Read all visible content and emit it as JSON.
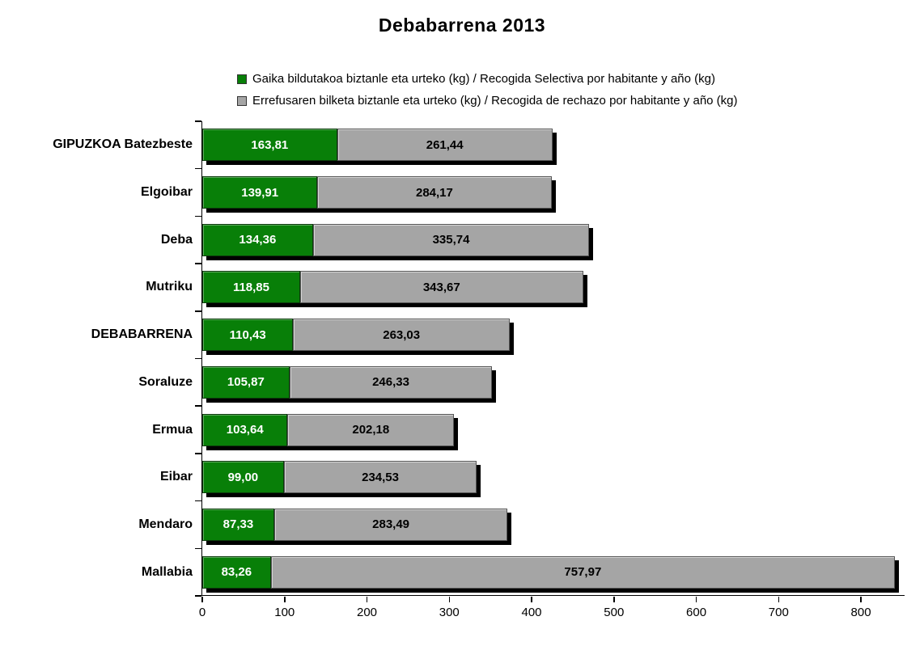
{
  "title": "Debabarrena 2013",
  "legend": [
    {
      "label": "Gaika bildutakoa biztanle eta urteko (kg) / Recogida Selectiva por habitante y año (kg)",
      "color": "#087f08"
    },
    {
      "label": "Errefusaren bilketa biztanle eta urteko (kg) / Recogida de rechazo por habitante y año (kg)",
      "color": "#a5a5a5"
    }
  ],
  "chart_data": {
    "type": "bar",
    "orientation": "horizontal",
    "stacked": true,
    "title": "Debabarrena 2013",
    "xlabel": "",
    "ylabel": "",
    "grid": false,
    "legend_position": "top",
    "xlim": [
      0,
      854
    ],
    "xticks": [
      0,
      100,
      200,
      300,
      400,
      500,
      600,
      700,
      800
    ],
    "categories": [
      "GIPUZKOA Batezbeste",
      "Elgoibar",
      "Deba",
      "Mutriku",
      "DEBABARRENA",
      "Soraluze",
      "Ermua",
      "Eibar",
      "Mendaro",
      "Mallabia"
    ],
    "series": [
      {
        "name": "Gaika bildutakoa biztanle eta urteko (kg) / Recogida Selectiva por habitante y año (kg)",
        "color": "#087f08",
        "values": [
          163.81,
          139.91,
          134.36,
          118.85,
          110.43,
          105.87,
          103.64,
          99.0,
          87.33,
          83.26
        ],
        "labels": [
          "163,81",
          "139,91",
          "134,36",
          "118,85",
          "110,43",
          "105,87",
          "103,64",
          "99,00",
          "87,33",
          "83,26"
        ]
      },
      {
        "name": "Errefusaren bilketa biztanle eta urteko (kg) / Recogida de rechazo por habitante y año (kg)",
        "color": "#a5a5a5",
        "values": [
          261.44,
          284.17,
          335.74,
          343.67,
          263.03,
          246.33,
          202.18,
          234.53,
          283.49,
          757.97
        ],
        "labels": [
          "261,44",
          "284,17",
          "335,74",
          "343,67",
          "263,03",
          "246,33",
          "202,18",
          "234,53",
          "283,49",
          "757,97"
        ]
      }
    ]
  }
}
